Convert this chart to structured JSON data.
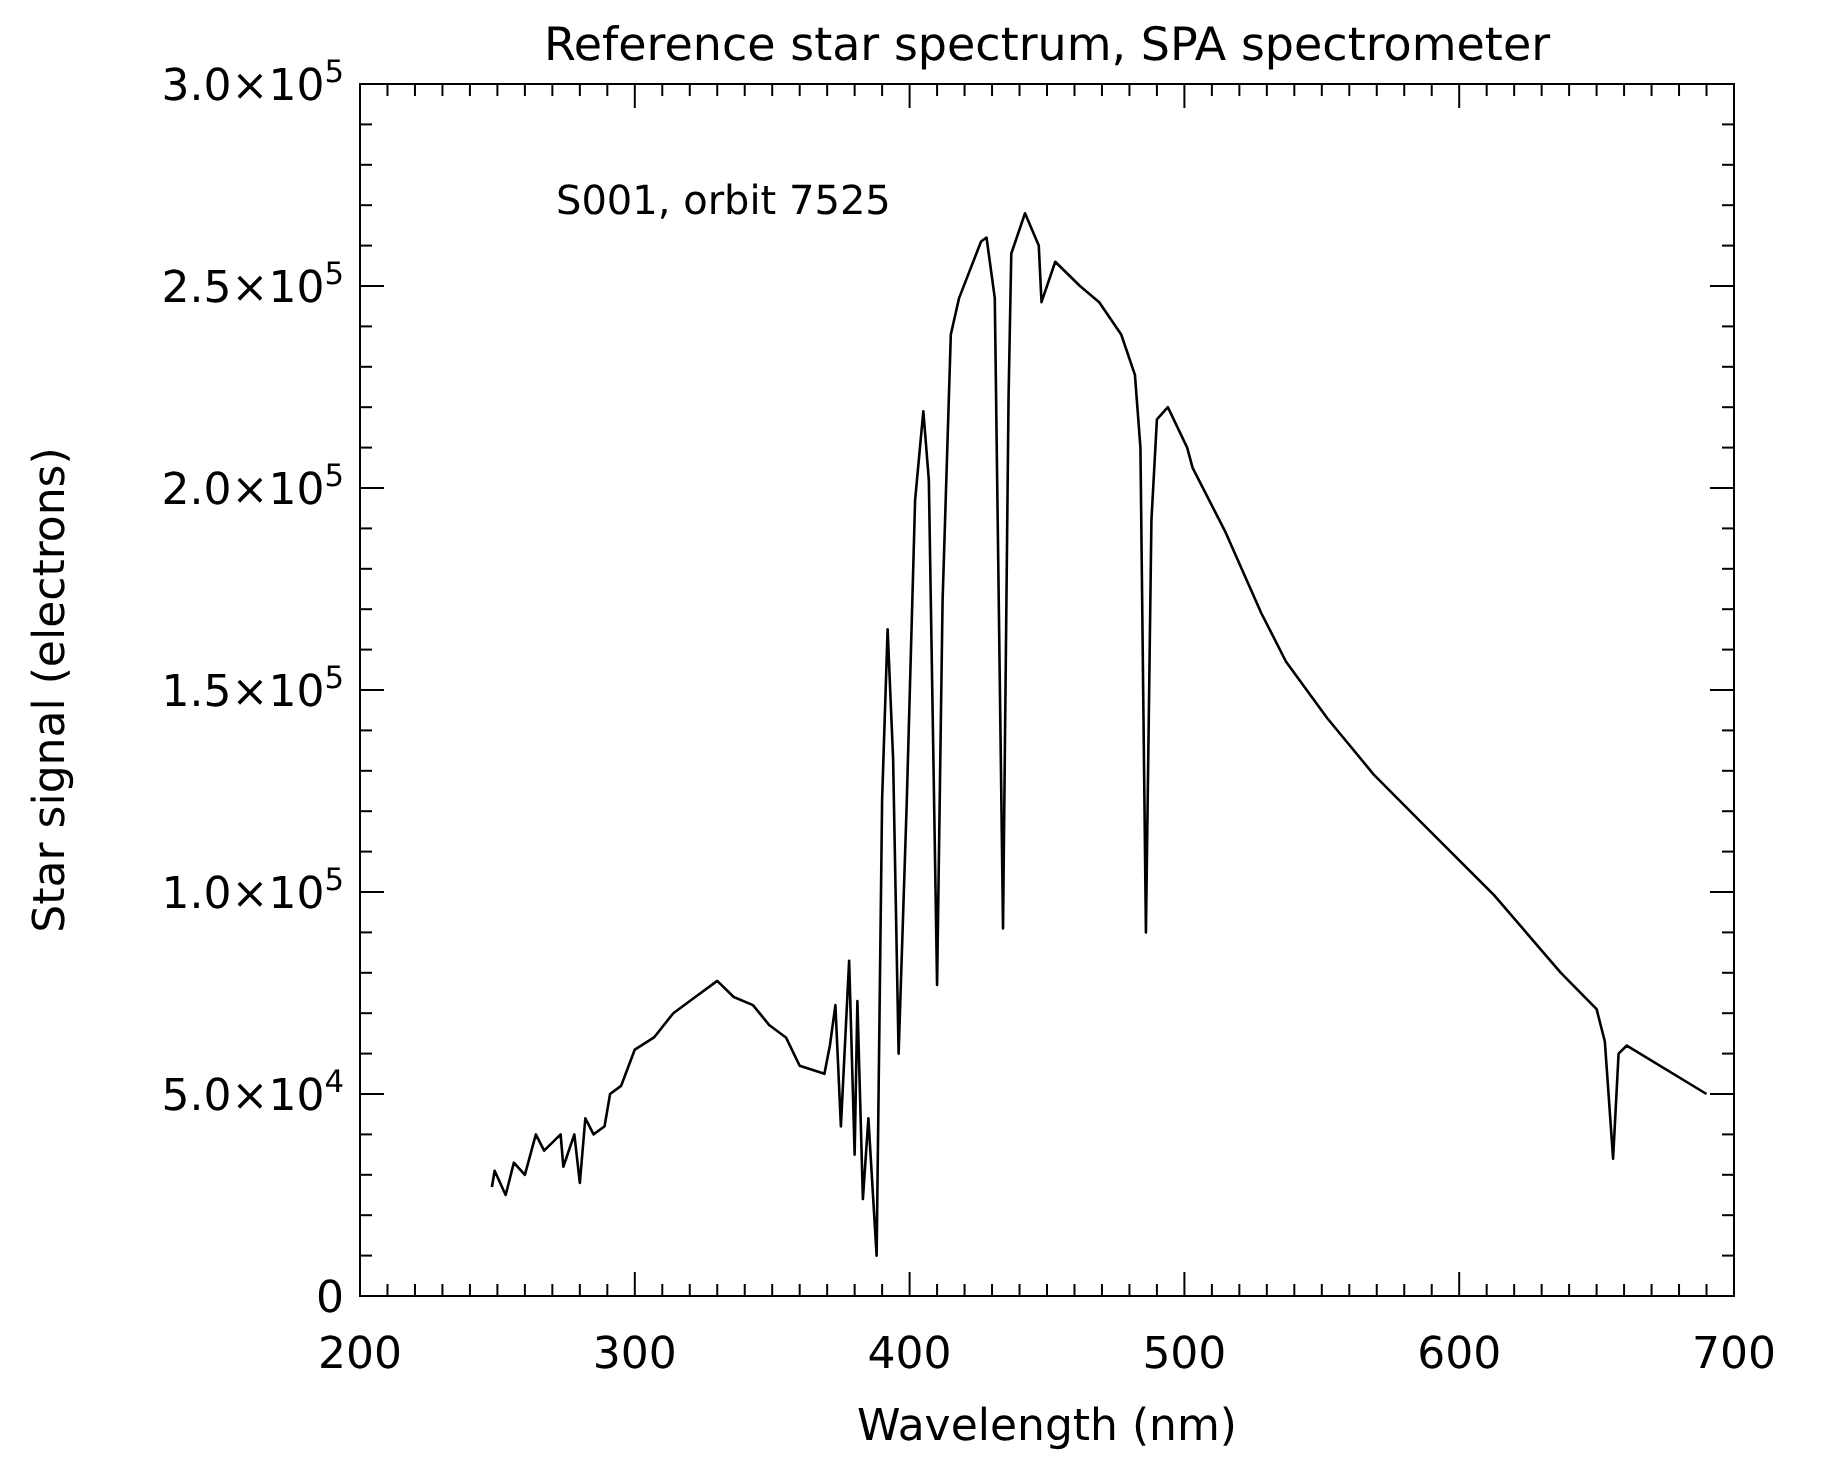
{
  "chart_data": {
    "type": "line",
    "title": "Reference star spectrum, SPA spectrometer",
    "xlabel": "Wavelength (nm)",
    "ylabel": "Star signal (electrons)",
    "annotations": [
      "S001, orbit 7525"
    ],
    "xlim": [
      200,
      700
    ],
    "ylim": [
      0,
      300000
    ],
    "xticks": [
      200,
      {
        "value": 210,
        "label": null
      },
      {
        "value": 220,
        "label": null
      },
      {
        "value": 230,
        "label": null
      },
      {
        "value": 240,
        "label": null
      },
      {
        "value": 250,
        "label": null
      },
      {
        "value": 260,
        "label": null
      },
      {
        "value": 270,
        "label": null
      },
      {
        "value": 280,
        "label": null
      },
      {
        "value": 290,
        "label": null
      },
      300,
      {
        "value": 310,
        "label": null
      },
      {
        "value": 320,
        "label": null
      },
      {
        "value": 330,
        "label": null
      },
      {
        "value": 340,
        "label": null
      },
      {
        "value": 350,
        "label": null
      },
      {
        "value": 360,
        "label": null
      },
      {
        "value": 370,
        "label": null
      },
      {
        "value": 380,
        "label": null
      },
      {
        "value": 390,
        "label": null
      },
      400,
      {
        "value": 410,
        "label": null
      },
      {
        "value": 420,
        "label": null
      },
      {
        "value": 430,
        "label": null
      },
      {
        "value": 440,
        "label": null
      },
      {
        "value": 450,
        "label": null
      },
      {
        "value": 460,
        "label": null
      },
      {
        "value": 470,
        "label": null
      },
      {
        "value": 480,
        "label": null
      },
      {
        "value": 490,
        "label": null
      },
      500,
      {
        "value": 510,
        "label": null
      },
      {
        "value": 520,
        "label": null
      },
      {
        "value": 530,
        "label": null
      },
      {
        "value": 540,
        "label": null
      },
      {
        "value": 550,
        "label": null
      },
      {
        "value": 560,
        "label": null
      },
      {
        "value": 570,
        "label": null
      },
      {
        "value": 580,
        "label": null
      },
      {
        "value": 590,
        "label": null
      },
      600,
      {
        "value": 610,
        "label": null
      },
      {
        "value": 620,
        "label": null
      },
      {
        "value": 630,
        "label": null
      },
      {
        "value": 640,
        "label": null
      },
      {
        "value": 650,
        "label": null
      },
      {
        "value": 660,
        "label": null
      },
      {
        "value": 670,
        "label": null
      },
      {
        "value": 680,
        "label": null
      },
      {
        "value": 690,
        "label": null
      },
      700
    ],
    "yticks": [
      0,
      {
        "value": 10000,
        "label": null
      },
      {
        "value": 20000,
        "label": null
      },
      {
        "value": 30000,
        "label": null
      },
      {
        "value": 40000,
        "label": null
      },
      {
        "value": 50000,
        "label": "5.0×10$^{4}$"
      },
      {
        "value": 60000,
        "label": null
      },
      {
        "value": 70000,
        "label": null
      },
      {
        "value": 80000,
        "label": null
      },
      {
        "value": 90000,
        "label": null
      },
      {
        "value": 100000,
        "label": "1.0×10$^{5}$"
      },
      {
        "value": 110000,
        "label": null
      },
      {
        "value": 120000,
        "label": null
      },
      {
        "value": 130000,
        "label": null
      },
      {
        "value": 140000,
        "label": null
      },
      {
        "value": 150000,
        "label": "1.5×10$^{5}$"
      },
      {
        "value": 160000,
        "label": null
      },
      {
        "value": 170000,
        "label": null
      },
      {
        "value": 180000,
        "label": null
      },
      {
        "value": 190000,
        "label": null
      },
      {
        "value": 200000,
        "label": "2.0×10$^{5}$"
      },
      {
        "value": 210000,
        "label": null
      },
      {
        "value": 220000,
        "label": null
      },
      {
        "value": 230000,
        "label": null
      },
      {
        "value": 240000,
        "label": null
      },
      {
        "value": 250000,
        "label": "2.5×10$^{5}$"
      },
      {
        "value": 260000,
        "label": null
      },
      {
        "value": 270000,
        "label": null
      },
      {
        "value": 280000,
        "label": null
      },
      {
        "value": 290000,
        "label": null
      },
      {
        "value": 300000,
        "label": "3.0×10$^{5}$"
      }
    ],
    "grid": false,
    "marker": "none",
    "line_style": "solid",
    "series": [
      {
        "color": "#000000",
        "x": [
          248,
          249,
          253,
          256,
          260,
          264,
          267,
          273,
          274,
          278,
          280,
          282,
          285,
          289,
          291,
          295,
          300,
          307,
          314,
          322,
          330,
          336,
          343,
          349,
          355,
          360,
          369,
          371,
          373,
          375,
          378,
          380,
          381,
          383,
          385,
          388,
          390,
          392,
          394,
          396,
          399,
          402,
          405,
          407,
          410,
          412,
          415,
          418,
          426,
          428,
          431,
          434,
          436,
          437,
          442,
          447,
          448,
          453,
          462,
          469,
          477,
          482,
          484,
          486,
          488,
          490,
          494,
          501,
          503,
          515,
          528,
          537,
          552,
          569,
          588,
          613,
          637,
          650,
          653,
          656,
          658,
          661,
          690
        ],
        "values": [
          27000,
          31000,
          25000,
          33000,
          30000,
          40000,
          36000,
          40000,
          32000,
          40000,
          28000,
          44000,
          40000,
          42000,
          50000,
          52000,
          61000,
          64000,
          70000,
          74000,
          78000,
          74000,
          72000,
          67000,
          64000,
          57000,
          55000,
          62000,
          72000,
          42000,
          83000,
          35000,
          73000,
          24000,
          44000,
          10000,
          123000,
          165000,
          133000,
          60000,
          123000,
          197000,
          219000,
          202000,
          77000,
          172000,
          238000,
          247000,
          261000,
          262000,
          247000,
          91000,
          222000,
          258000,
          268000,
          260000,
          246000,
          256000,
          250000,
          246000,
          238000,
          228000,
          210000,
          90000,
          192000,
          217000,
          220000,
          210000,
          205000,
          189000,
          169000,
          157000,
          143000,
          129000,
          116000,
          99000,
          80000,
          71000,
          63000,
          34000,
          60000,
          62000,
          50000
        ]
      }
    ]
  }
}
